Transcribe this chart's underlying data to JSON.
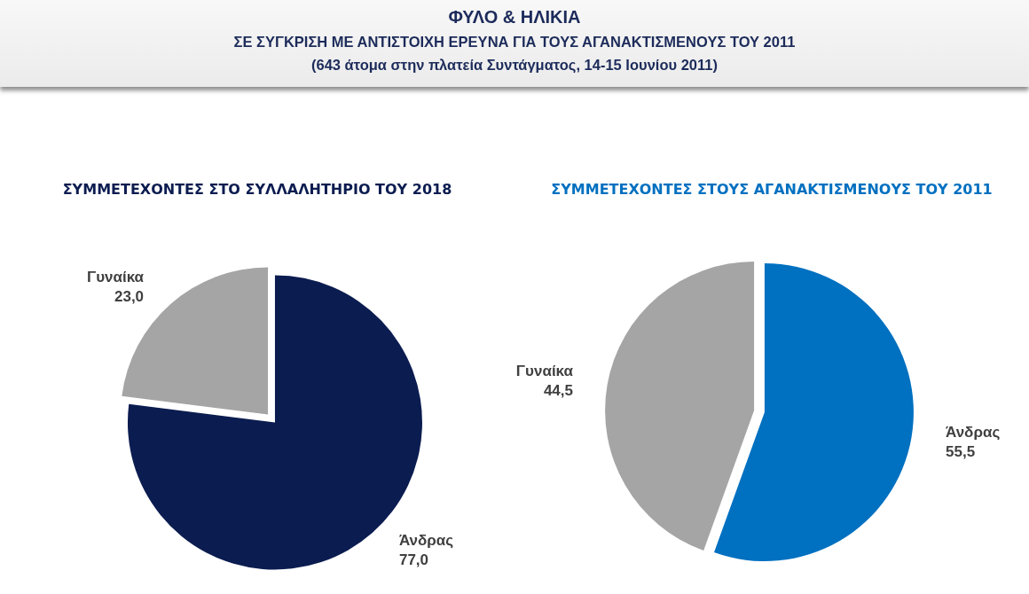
{
  "chart_data": [
    {
      "type": "pie",
      "title": "ΣΥΜΜΕΤΕΧΟΝΤΕΣ ΣΤΟ ΣΥΛΛΑΛΗΤΗΡΙΟ ΤΟΥ 2018",
      "annotations": [
        "ΦΥΛΟ & ΗΛΙΚΙΑ",
        "ΣΕ ΣΥΓΚΡΙΣΗ ΜΕ ΑΝΤΙΣΤΟΙΧΗ ΕΡΕΥΝΑ ΓΙΑ ΤΟΥΣ ΑΓΑΝΑΚΤΙΣΜΕΝΟΥΣ ΤΟΥ 2011",
        "(643 άτομα στην πλατεία Συντάγματος, 14-15 Ιουνίου 2011)"
      ],
      "categories": [
        "Άνδρας",
        "Γυναίκα"
      ],
      "values": [
        77.0,
        23.0
      ],
      "value_labels": [
        "77,0",
        "23,0"
      ],
      "colors": [
        "#0b1c50",
        "#a5a5a5"
      ],
      "legend": false
    },
    {
      "type": "pie",
      "title": "ΣΥΜΜΕΤΕΧΟΝΤΕΣ ΣΤΟΥΣ ΑΓΑΝΑΚΤΙΣΜΕΝΟΥΣ ΤΟΥ 2011",
      "categories": [
        "Άνδρας",
        "Γυναίκα"
      ],
      "values": [
        55.5,
        44.5
      ],
      "value_labels": [
        "55,5",
        "44,5"
      ],
      "colors": [
        "#0070c0",
        "#a5a5a5"
      ],
      "legend": false
    }
  ]
}
